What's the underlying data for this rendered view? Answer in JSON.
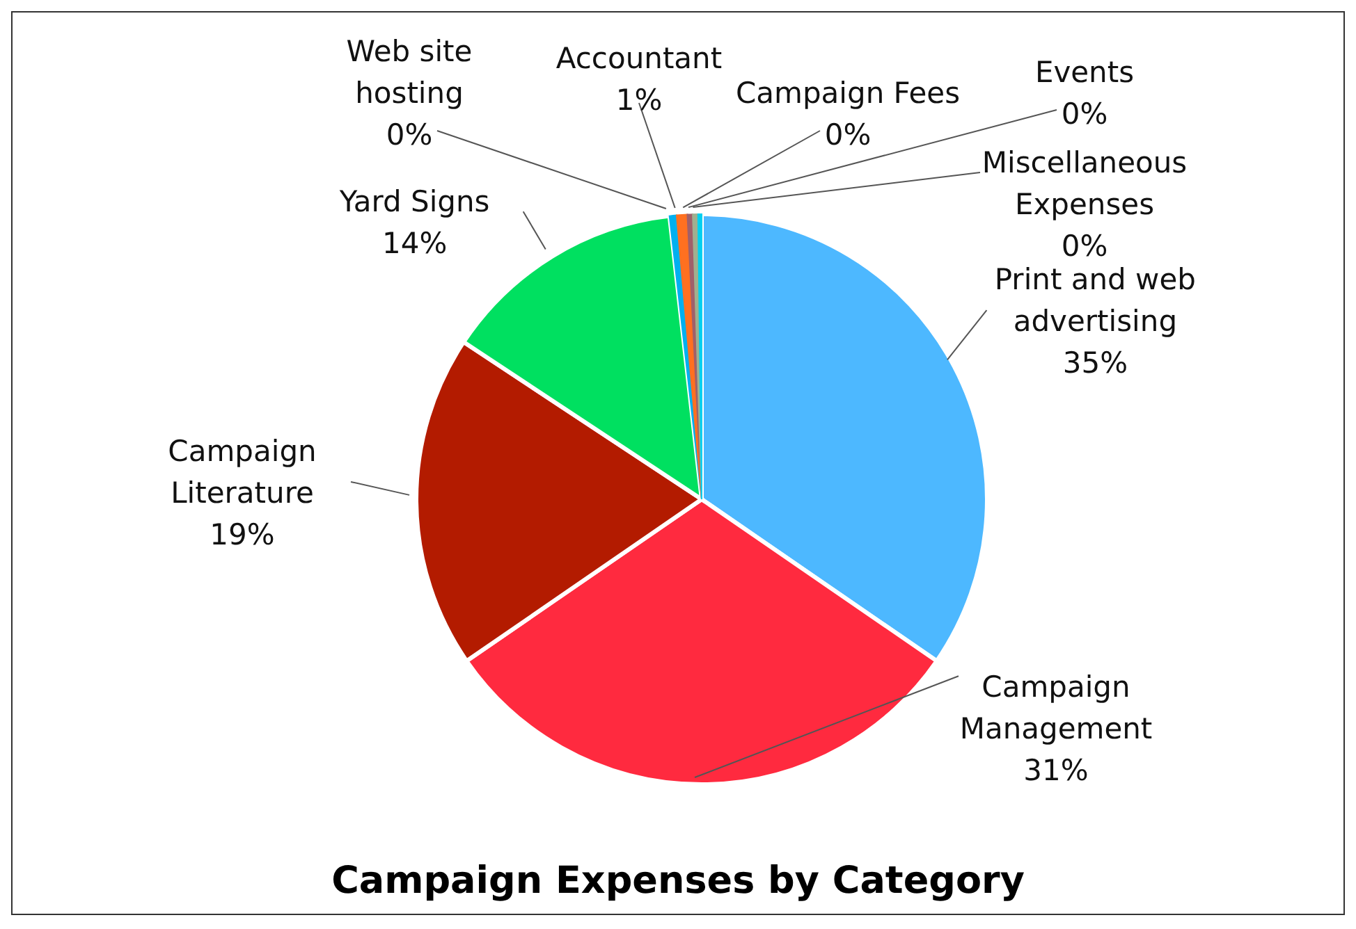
{
  "chart_data": {
    "type": "pie",
    "title": "Campaign Expenses by Category",
    "categories": [
      "Print and web advertising",
      "Campaign Management",
      "Campaign Literature",
      "Yard Signs",
      "Web site hosting",
      "Accountant",
      "Campaign Fees",
      "Events",
      "Miscellaneous Expenses"
    ],
    "values": [
      34.6,
      30.8,
      18.9,
      13.9,
      0.4,
      0.6,
      0.3,
      0.3,
      0.2
    ],
    "value_labels": [
      "35%",
      "31%",
      "19%",
      "14%",
      "0%",
      "1%",
      "0%",
      "0%",
      "0%"
    ],
    "colors": [
      "#4db8ff",
      "#ff2a3f",
      "#b31b00",
      "#00e060",
      "#00b0f0",
      "#ff7020",
      "#a0606a",
      "#a0b090",
      "#00d0f0"
    ]
  }
}
